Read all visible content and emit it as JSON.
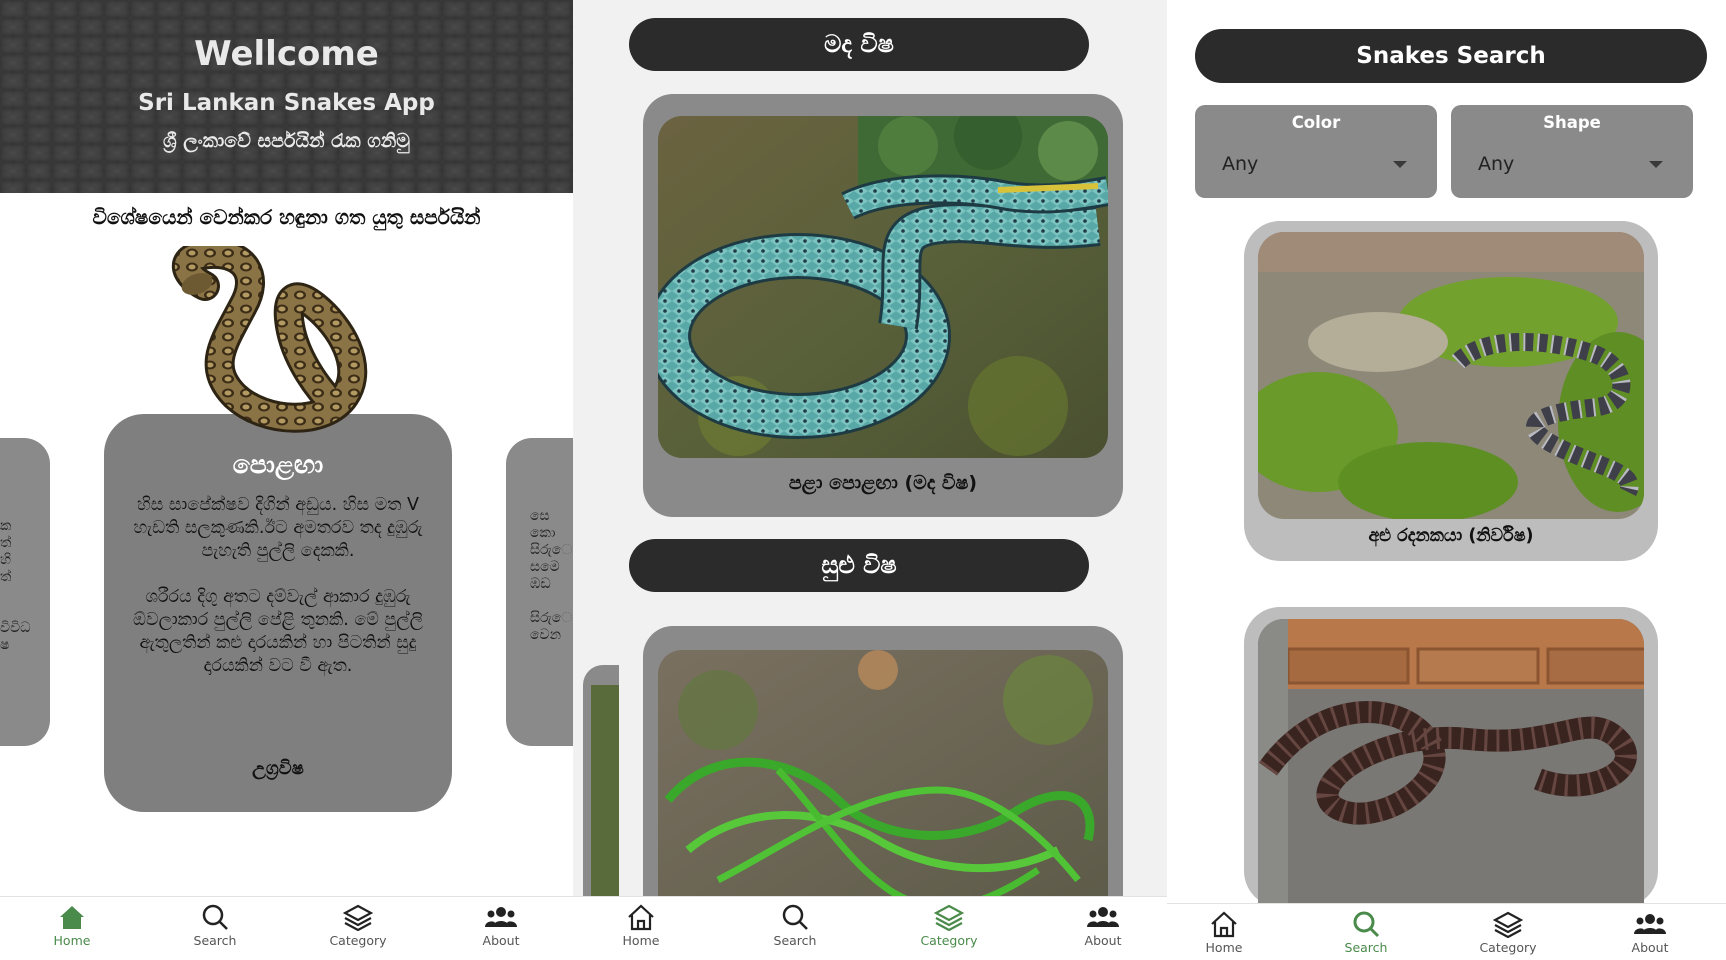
{
  "screen_home": {
    "hero": {
      "title": "Wellcome",
      "subtitle": "Sri Lankan Snakes App",
      "tagline_si": "ශ්‍රී ලංකාවේ සර්පයින් රැක ගනිමු"
    },
    "section_heading": "විශේෂයෙන් වෙන්කර හඳුනා ගත යුතු සර්පයින්",
    "featured_card": {
      "name": "පොළඟා",
      "description": "හිස සාපේක්ෂව දිගින් අඩුය. හිස මත V හැඩති සලකුණකි.ඊට අමතරව තද දුඹුරු පැහැති පුල්ලි දෙකකි.\n\nශරීරය දිගු අතට දම්වැල් ආකාර දුඹුරු ඕවලාකාර පුල්ලි පේළි තුනකි. මේ පුල්ලි ඇතුලතින් කළු දාරයකින් හා පිටතින් සුදු දාරයකින් වට වී ඇත.",
      "venom_type": "උග්‍රවිෂ"
    },
    "left_card_fragments": [
      "ක",
      "ත්",
      "හි",
      "ත්",
      "",
      "විවිධ",
      "ෂ"
    ],
    "right_card_fragments": [
      "සෙ",
      "කො",
      "සිරුෙ",
      "සමෙ",
      "ඹඩ",
      "",
      "සිරුෙ",
      "වෙන"
    ]
  },
  "screen_category": {
    "section_1_title": "මද විෂ",
    "section_1_card_caption": "පළා පොළඟා (මද විෂ)",
    "section_2_title": "සුළු විෂ"
  },
  "screen_search": {
    "title": "Snakes Search",
    "filters": {
      "color_label": "Color",
      "color_value": "Any",
      "shape_label": "Shape",
      "shape_value": "Any"
    },
    "result_1_caption": "අළු රදනකයා (නිර්විෂ)"
  },
  "nav": {
    "home": "Home",
    "search": "Search",
    "category": "Category",
    "about": "About"
  },
  "colors": {
    "active_nav": "#4a8a4a",
    "pill_dark": "#2b2b2b",
    "card_gray": "#7f7f7f"
  }
}
